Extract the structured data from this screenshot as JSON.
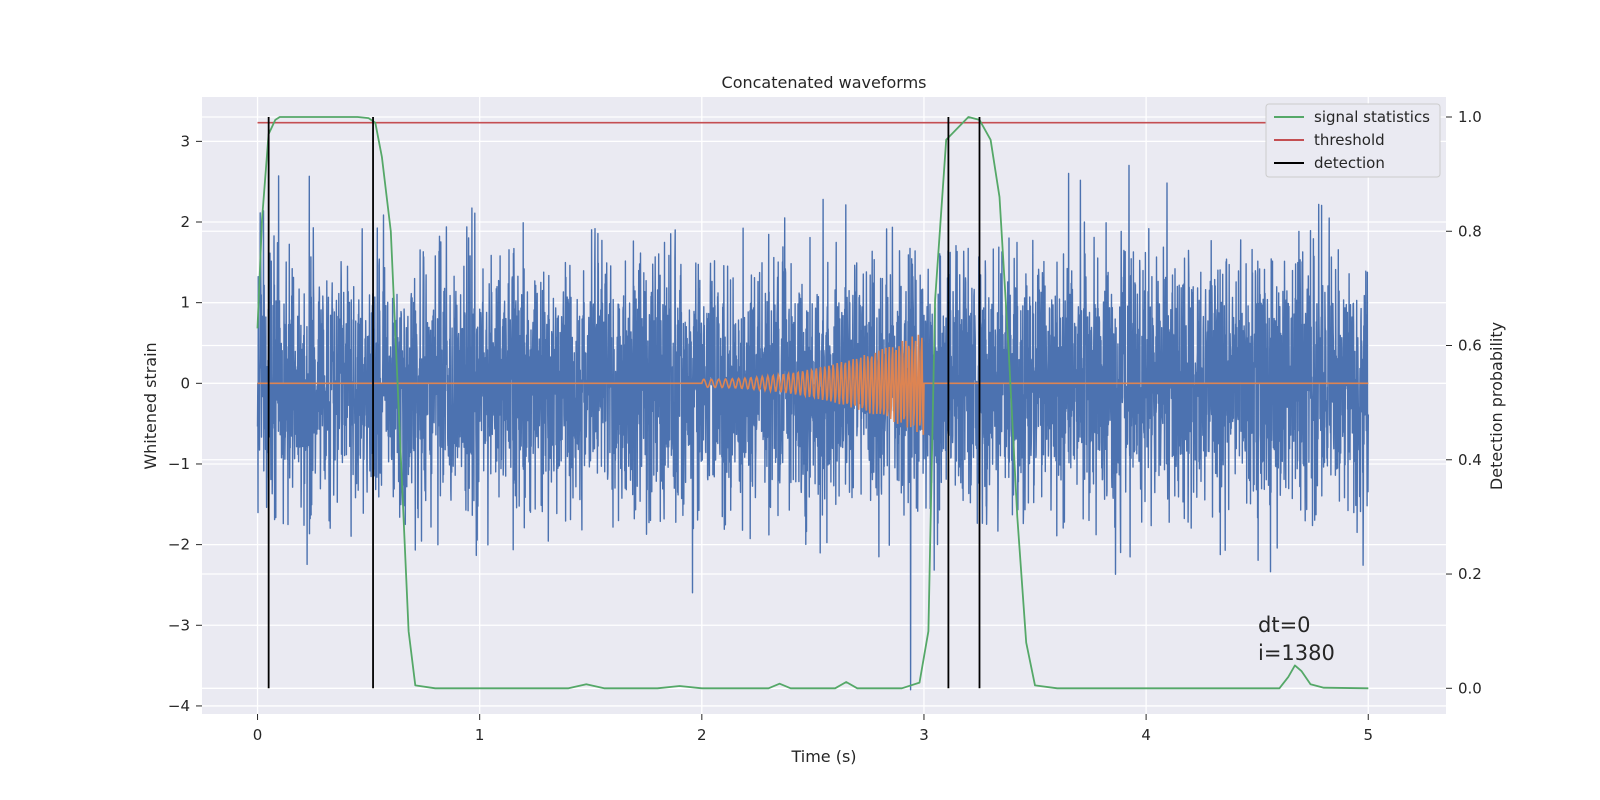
{
  "chart_data": {
    "type": "line",
    "title": "Concatenated waveforms",
    "xlabel": "Time (s)",
    "ylabel_left": "Whitened strain",
    "ylabel_right": "Detection probability",
    "xlim": [
      -0.25,
      5.35
    ],
    "ylim_left": [
      -4.1,
      3.55
    ],
    "ylim_right": [
      -0.045,
      1.035
    ],
    "x_ticks": [
      0,
      1,
      2,
      3,
      4,
      5
    ],
    "y_left_ticks": [
      -4,
      -3,
      -2,
      -1,
      0,
      1,
      2,
      3
    ],
    "y_right_ticks": [
      0.0,
      0.2,
      0.4,
      0.6,
      0.8,
      1.0
    ],
    "x_tick_labels": [
      "0",
      "1",
      "2",
      "3",
      "4",
      "5"
    ],
    "y_left_tick_labels": [
      "−4",
      "−3",
      "−2",
      "−1",
      "0",
      "1",
      "2",
      "3"
    ],
    "y_right_tick_labels": [
      "0.0",
      "0.2",
      "0.4",
      "0.6",
      "0.8",
      "1.0"
    ],
    "grid": true,
    "legend_position": "top-right",
    "series": [
      {
        "name": "",
        "axis": "left",
        "kind": "noise",
        "color": "#4c72b0",
        "x_range": [
          0,
          5
        ],
        "typical_amplitude": 1.0,
        "peak_amplitude": 3.3
      },
      {
        "name": "",
        "axis": "left",
        "kind": "chirp",
        "color": "#dd8452",
        "baseline": 0,
        "chirp_start": 2.0,
        "chirp_end": 3.0,
        "start_amplitude": 0.05,
        "end_amplitude": 0.65
      },
      {
        "name": "signal statistics",
        "axis": "right",
        "color": "#55a868",
        "x": [
          0,
          0.02,
          0.05,
          0.08,
          0.1,
          0.15,
          0.3,
          0.45,
          0.5,
          0.53,
          0.56,
          0.6,
          0.64,
          0.68,
          0.71,
          0.8,
          1.0,
          1.4,
          1.48,
          1.56,
          1.8,
          1.9,
          2.0,
          2.3,
          2.35,
          2.4,
          2.6,
          2.65,
          2.7,
          2.9,
          2.98,
          3.02,
          3.05,
          3.1,
          3.2,
          3.25,
          3.3,
          3.34,
          3.38,
          3.42,
          3.46,
          3.5,
          3.6,
          4.0,
          4.6,
          4.64,
          4.67,
          4.7,
          4.74,
          4.8,
          5.0
        ],
        "y": [
          0.63,
          0.82,
          0.97,
          0.995,
          1.0,
          1.0,
          1.0,
          1.0,
          0.998,
          0.99,
          0.93,
          0.8,
          0.45,
          0.1,
          0.005,
          0.0,
          0.0,
          0.0,
          0.007,
          0.0,
          0.0,
          0.004,
          0.0,
          0.0,
          0.008,
          0.0,
          0.0,
          0.011,
          0.0,
          0.0,
          0.01,
          0.1,
          0.68,
          0.96,
          1.0,
          0.995,
          0.96,
          0.86,
          0.6,
          0.3,
          0.08,
          0.005,
          0.0,
          0.0,
          0.0,
          0.02,
          0.04,
          0.03,
          0.007,
          0.001,
          0.0
        ]
      },
      {
        "name": "threshold",
        "axis": "right",
        "color": "#c44e52",
        "x": [
          0,
          5
        ],
        "y": [
          0.99,
          0.99
        ]
      },
      {
        "name": "detection",
        "axis": "right",
        "color": "#000000",
        "x_positions": [
          0.05,
          0.52,
          3.11,
          3.25
        ],
        "y_range": [
          0,
          1
        ]
      }
    ],
    "annotations": {
      "dt": "dt=0",
      "i": "i=1380"
    }
  }
}
